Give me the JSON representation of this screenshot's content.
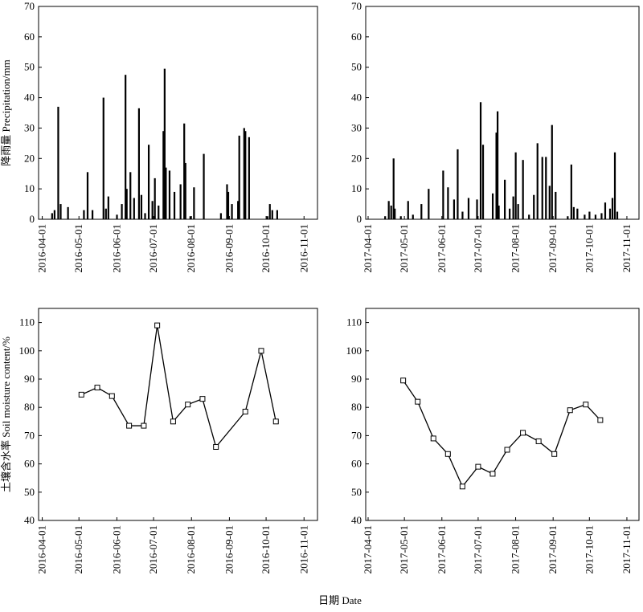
{
  "xlabel": "日期 Date",
  "chart_data": [
    {
      "type": "bar",
      "ylabel": "降雨量 Precipitation/mm",
      "color": "#000000",
      "x": [
        "2016-04-09",
        "2016-04-11",
        "2016-04-14",
        "2016-04-16",
        "2016-04-22",
        "2016-05-05",
        "2016-05-08",
        "2016-05-12",
        "2016-05-21",
        "2016-05-23",
        "2016-05-25",
        "2016-06-01",
        "2016-06-05",
        "2016-06-08",
        "2016-06-09",
        "2016-06-12",
        "2016-06-15",
        "2016-06-19",
        "2016-06-21",
        "2016-06-24",
        "2016-06-27",
        "2016-06-30",
        "2016-07-02",
        "2016-07-05",
        "2016-07-09",
        "2016-07-10",
        "2016-07-11",
        "2016-07-14",
        "2016-07-18",
        "2016-07-23",
        "2016-07-26",
        "2016-07-27",
        "2016-07-31",
        "2016-08-03",
        "2016-08-11",
        "2016-08-25",
        "2016-08-30",
        "2016-08-31",
        "2016-09-03",
        "2016-09-08",
        "2016-09-09",
        "2016-09-13",
        "2016-09-14",
        "2016-09-17",
        "2016-10-02",
        "2016-10-04",
        "2016-10-06",
        "2016-10-10"
      ],
      "values": [
        2,
        3,
        37,
        5,
        4,
        3,
        15.5,
        3,
        40,
        3.5,
        7.5,
        1.5,
        5,
        47.5,
        10,
        15.5,
        7,
        36.5,
        8,
        2,
        24.5,
        6,
        13.5,
        4.5,
        29,
        49.5,
        17,
        16,
        9,
        11.5,
        31.5,
        18.5,
        1,
        10.5,
        21.5,
        2,
        11.5,
        9,
        5,
        6,
        27.5,
        30,
        29,
        27,
        1,
        5,
        3,
        3
      ],
      "xlim": [
        "2016-03-29",
        "2016-11-12"
      ],
      "xticks": [
        "2016-04-01",
        "2016-05-01",
        "2016-06-01",
        "2016-07-01",
        "2016-08-01",
        "2016-09-01",
        "2016-10-01",
        "2016-11-01"
      ],
      "ylim": [
        0,
        70
      ],
      "yticks": [
        0,
        10,
        20,
        30,
        40,
        50,
        60,
        70
      ]
    },
    {
      "type": "bar",
      "color": "#000000",
      "x": [
        "2017-04-15",
        "2017-04-18",
        "2017-04-20",
        "2017-04-22",
        "2017-04-23",
        "2017-04-28",
        "2017-05-04",
        "2017-05-08",
        "2017-05-15",
        "2017-05-21",
        "2017-06-02",
        "2017-06-06",
        "2017-06-11",
        "2017-06-14",
        "2017-06-18",
        "2017-06-23",
        "2017-06-30",
        "2017-07-03",
        "2017-07-05",
        "2017-07-13",
        "2017-07-16",
        "2017-07-17",
        "2017-07-18",
        "2017-07-23",
        "2017-07-27",
        "2017-07-30",
        "2017-08-01",
        "2017-08-03",
        "2017-08-07",
        "2017-08-12",
        "2017-08-16",
        "2017-08-19",
        "2017-08-23",
        "2017-08-26",
        "2017-08-29",
        "2017-08-31",
        "2017-09-03",
        "2017-09-13",
        "2017-09-16",
        "2017-09-18",
        "2017-09-21",
        "2017-09-27",
        "2017-10-01",
        "2017-10-06",
        "2017-10-11",
        "2017-10-14",
        "2017-10-18",
        "2017-10-20",
        "2017-10-22",
        "2017-10-24"
      ],
      "values": [
        1,
        6,
        4.5,
        20,
        3.5,
        1,
        6,
        1.5,
        5,
        10,
        16,
        10.5,
        6.5,
        23,
        2.5,
        7,
        6.5,
        38.5,
        24.5,
        8.5,
        28.5,
        35.5,
        4.5,
        13,
        3.5,
        7.5,
        22,
        5,
        19.5,
        1.5,
        8,
        25,
        20.5,
        20.5,
        11,
        31,
        9,
        1,
        18,
        4,
        3.5,
        1.5,
        2.5,
        1.5,
        2,
        5.5,
        3.5,
        7,
        22,
        2.5
      ],
      "xlim": [
        "2017-03-30",
        "2017-11-11"
      ],
      "xticks": [
        "2017-04-01",
        "2017-05-01",
        "2017-06-01",
        "2017-07-01",
        "2017-08-01",
        "2017-09-01",
        "2017-10-01",
        "2017-11-01"
      ],
      "ylim": [
        0,
        70
      ],
      "yticks": [
        0,
        10,
        20,
        30,
        40,
        50,
        60,
        70
      ]
    },
    {
      "type": "line",
      "ylabel": "土壤含水率 Soil moisture content/%",
      "color": "#000000",
      "x": [
        "2016-05-03",
        "2016-05-16",
        "2016-05-28",
        "2016-06-11",
        "2016-06-23",
        "2016-07-04",
        "2016-07-17",
        "2016-07-29",
        "2016-08-10",
        "2016-08-21",
        "2016-09-14",
        "2016-09-27",
        "2016-10-09"
      ],
      "values": [
        84.5,
        87,
        84,
        73.5,
        73.5,
        109,
        75,
        81,
        83,
        66,
        78.5,
        100,
        75
      ],
      "xlim": [
        "2016-03-29",
        "2016-11-12"
      ],
      "xticks": [
        "2016-04-01",
        "2016-05-01",
        "2016-06-01",
        "2016-07-01",
        "2016-08-01",
        "2016-09-01",
        "2016-10-01",
        "2016-11-01"
      ],
      "ylim": [
        40,
        115
      ],
      "yticks": [
        40,
        50,
        60,
        70,
        80,
        90,
        100,
        110
      ]
    },
    {
      "type": "line",
      "color": "#000000",
      "x": [
        "2017-04-30",
        "2017-05-12",
        "2017-05-25",
        "2017-06-06",
        "2017-06-18",
        "2017-07-01",
        "2017-07-13",
        "2017-07-25",
        "2017-08-07",
        "2017-08-20",
        "2017-09-02",
        "2017-09-15",
        "2017-09-28",
        "2017-10-10"
      ],
      "values": [
        89.5,
        82,
        69,
        63.5,
        52,
        59,
        56.5,
        65,
        71,
        68,
        63.5,
        79,
        81,
        75.5
      ],
      "xlim": [
        "2017-03-30",
        "2017-11-11"
      ],
      "xticks": [
        "2017-04-01",
        "2017-05-01",
        "2017-06-01",
        "2017-07-01",
        "2017-08-01",
        "2017-09-01",
        "2017-10-01",
        "2017-11-01"
      ],
      "ylim": [
        40,
        115
      ],
      "yticks": [
        40,
        50,
        60,
        70,
        80,
        90,
        100,
        110
      ]
    }
  ]
}
